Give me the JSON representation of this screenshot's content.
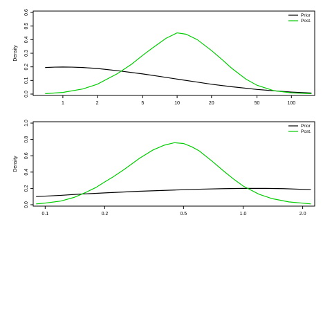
{
  "chart_data": [
    {
      "type": "line",
      "ylabel": "Density",
      "xscale": "log",
      "xlim": [
        0.55,
        160
      ],
      "ylim": [
        0,
        0.6
      ],
      "xticks": [
        1,
        2,
        5,
        10,
        20,
        50,
        100
      ],
      "xtick_labels": [
        "1",
        "2",
        "5",
        "10",
        "20",
        "50",
        "100"
      ],
      "yticks": [
        0.0,
        0.1,
        0.2,
        0.3,
        0.4,
        0.5,
        0.6
      ],
      "ytick_labels": [
        "0.0",
        "0.1",
        "0.2",
        "0.3",
        "0.4",
        "0.5",
        "0.6"
      ],
      "legend_position": "top-right",
      "series": [
        {
          "name": "Prior",
          "color": "#000000",
          "x": [
            0.7,
            0.85,
            1.0,
            1.2,
            1.5,
            2.0,
            3.0,
            5.0,
            7.0,
            10.0,
            15.0,
            20.0,
            30.0,
            50.0,
            70.0,
            100.0,
            150.0
          ],
          "y": [
            0.195,
            0.198,
            0.199,
            0.198,
            0.195,
            0.188,
            0.172,
            0.148,
            0.13,
            0.11,
            0.088,
            0.072,
            0.054,
            0.034,
            0.024,
            0.015,
            0.008
          ]
        },
        {
          "name": "Post.",
          "color": "#00cc00",
          "x": [
            0.7,
            1.0,
            1.5,
            2.0,
            3.0,
            4.0,
            5.0,
            6.0,
            8.0,
            10.0,
            12.0,
            15.0,
            20.0,
            25.0,
            30.0,
            40.0,
            50.0,
            70.0,
            100.0,
            150.0
          ],
          "y": [
            0.003,
            0.012,
            0.038,
            0.072,
            0.15,
            0.22,
            0.285,
            0.335,
            0.41,
            0.45,
            0.44,
            0.4,
            0.32,
            0.25,
            0.19,
            0.11,
            0.065,
            0.025,
            0.009,
            0.003
          ]
        }
      ]
    },
    {
      "type": "line",
      "ylabel": "Density",
      "xscale": "log",
      "xlim": [
        0.087,
        2.3
      ],
      "ylim": [
        0,
        1.0
      ],
      "xticks": [
        0.1,
        0.2,
        0.5,
        1.0,
        2.0
      ],
      "xtick_labels": [
        "0.1",
        "0.2",
        "0.5",
        "1.0",
        "2.0"
      ],
      "yticks": [
        0.0,
        0.2,
        0.4,
        0.6,
        0.8,
        1.0
      ],
      "ytick_labels": [
        "0.0",
        "0.2",
        "0.4",
        "0.6",
        "0.8",
        "1.0"
      ],
      "legend_position": "top-right",
      "series": [
        {
          "name": "Prior",
          "color": "#000000",
          "x": [
            0.09,
            0.12,
            0.15,
            0.2,
            0.3,
            0.45,
            0.6,
            0.8,
            1.0,
            1.3,
            1.6,
            2.2
          ],
          "y": [
            0.1,
            0.115,
            0.13,
            0.145,
            0.165,
            0.18,
            0.19,
            0.197,
            0.2,
            0.2,
            0.197,
            0.185
          ]
        },
        {
          "name": "Post.",
          "color": "#00cc00",
          "x": [
            0.09,
            0.1,
            0.12,
            0.14,
            0.16,
            0.18,
            0.2,
            0.22,
            0.25,
            0.3,
            0.35,
            0.4,
            0.45,
            0.5,
            0.55,
            0.6,
            0.7,
            0.8,
            0.9,
            1.0,
            1.2,
            1.4,
            1.7,
            2.2
          ],
          "y": [
            0.01,
            0.02,
            0.045,
            0.09,
            0.15,
            0.21,
            0.28,
            0.34,
            0.43,
            0.57,
            0.67,
            0.73,
            0.76,
            0.75,
            0.71,
            0.66,
            0.53,
            0.41,
            0.31,
            0.23,
            0.13,
            0.075,
            0.035,
            0.01
          ]
        }
      ]
    }
  ]
}
